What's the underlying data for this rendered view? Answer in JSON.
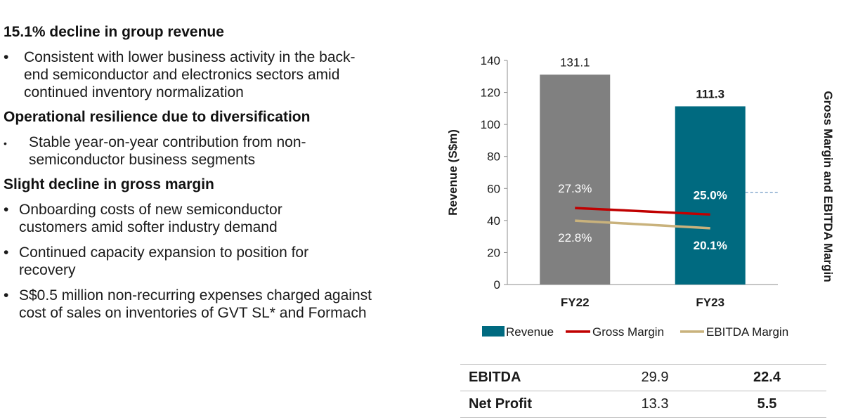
{
  "sections": [
    {
      "title": "15.1% decline in group revenue",
      "bullets": [
        "Consistent with lower business activity in the back-end semiconductor and electronics sectors amid continued inventory normalization"
      ]
    },
    {
      "title": "Operational resilience due to diversification",
      "bullets": [
        "Stable year-on-year contribution from non-semiconductor business segments"
      ]
    },
    {
      "title": "Slight decline in gross margin",
      "bullets": [
        "Onboarding costs of new semiconductor customers amid softer industry demand",
        "Continued capacity expansion to position for recovery",
        "S$0.5 million non-recurring expenses charged against cost of sales on inventories of GVT SL* and Formach"
      ]
    }
  ],
  "bullet_char": "•",
  "chart_data": {
    "type": "bar",
    "categories": [
      "FY22",
      "FY23"
    ],
    "series": [
      {
        "name": "Revenue",
        "kind": "bar",
        "values": [
          131.1,
          111.3
        ],
        "value_labels": [
          "131.1",
          "111.3"
        ],
        "colors": [
          "#808080",
          "#006a80"
        ]
      },
      {
        "name": "Gross Margin",
        "kind": "line",
        "values": [
          27.3,
          25.0
        ],
        "value_labels": [
          "27.3%",
          "25.0%"
        ],
        "color": "#c00000"
      },
      {
        "name": "EBITDA Margin",
        "kind": "line",
        "values": [
          22.8,
          20.1
        ],
        "value_labels": [
          "22.8%",
          "20.1%"
        ],
        "color": "#c9b27c"
      }
    ],
    "ylabel": "Revenue (S$m)",
    "y2label": "Gross Margin and EBITDA Margin",
    "ylim": [
      0,
      140
    ],
    "yticks": [
      0,
      20,
      40,
      60,
      80,
      100,
      120,
      140
    ],
    "legend_position": "bottom",
    "grid": false
  },
  "table": {
    "rows": [
      {
        "label": "EBITDA",
        "fy22": "29.9",
        "fy23": "22.4"
      },
      {
        "label": "Net Profit",
        "fy22": "13.3",
        "fy23": "5.5"
      }
    ]
  }
}
